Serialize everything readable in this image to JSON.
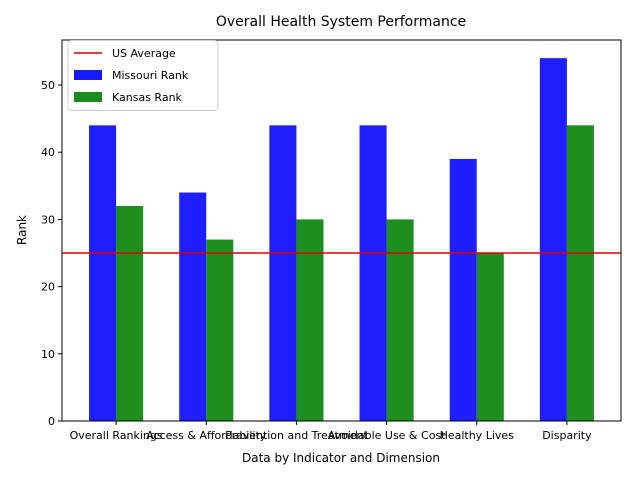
{
  "chart_data": {
    "type": "bar",
    "title": "Overall Health System Performance",
    "xlabel": "Data by Indicator and Dimension",
    "ylabel": "Rank",
    "categories": [
      "Overall Rankings",
      "Access & Affordability",
      "Prevention and Treatment",
      "Avoidable Use & Cost",
      "Healthy Lives",
      "Disparity"
    ],
    "series": [
      {
        "name": "Missouri Rank",
        "values": [
          44,
          34,
          44,
          44,
          39,
          54
        ],
        "color": "#1a1aff"
      },
      {
        "name": "Kansas Rank",
        "values": [
          32,
          27,
          30,
          30,
          25,
          44
        ],
        "color": "#1a8c1a"
      }
    ],
    "reference_line": {
      "name": "US Average",
      "value": 25,
      "color": "#e00000"
    },
    "ylim": [
      0,
      56.7
    ],
    "yticks": [
      0,
      10,
      20,
      30,
      40,
      50
    ],
    "legend": "top-left",
    "grid": false
  }
}
